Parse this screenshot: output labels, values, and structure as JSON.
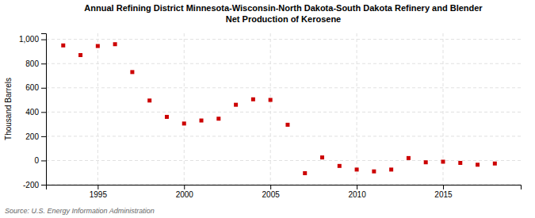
{
  "chart_data": {
    "type": "scatter",
    "title": "Annual Refining District Minnesota-Wisconsin-North Dakota-South Dakota Refinery and Blender\nNet Production of Kerosene",
    "ylabel": "Thousand Barrels",
    "source": "Source: U.S. Energy Information Administration",
    "x": [
      1993,
      1994,
      1995,
      1996,
      1997,
      1998,
      1999,
      2000,
      2001,
      2002,
      2003,
      2004,
      2005,
      2006,
      2007,
      2008,
      2009,
      2010,
      2011,
      2012,
      2013,
      2014,
      2015,
      2016,
      2017,
      2018
    ],
    "values": [
      950,
      870,
      945,
      960,
      730,
      495,
      360,
      305,
      330,
      345,
      460,
      505,
      500,
      295,
      -105,
      25,
      -45,
      -75,
      -90,
      -75,
      20,
      -15,
      -10,
      -20,
      -35,
      -25
    ],
    "color": "#cc0000",
    "marker": "square",
    "grid": true,
    "xlim": [
      1992,
      2019.5
    ],
    "xticks": [
      1995,
      2000,
      2005,
      2010,
      2015
    ],
    "ylim": [
      -200,
      1050
    ],
    "yticks": [
      -200,
      0,
      200,
      400,
      600,
      800,
      {
        "value": 1000,
        "label": "1,000"
      }
    ]
  }
}
